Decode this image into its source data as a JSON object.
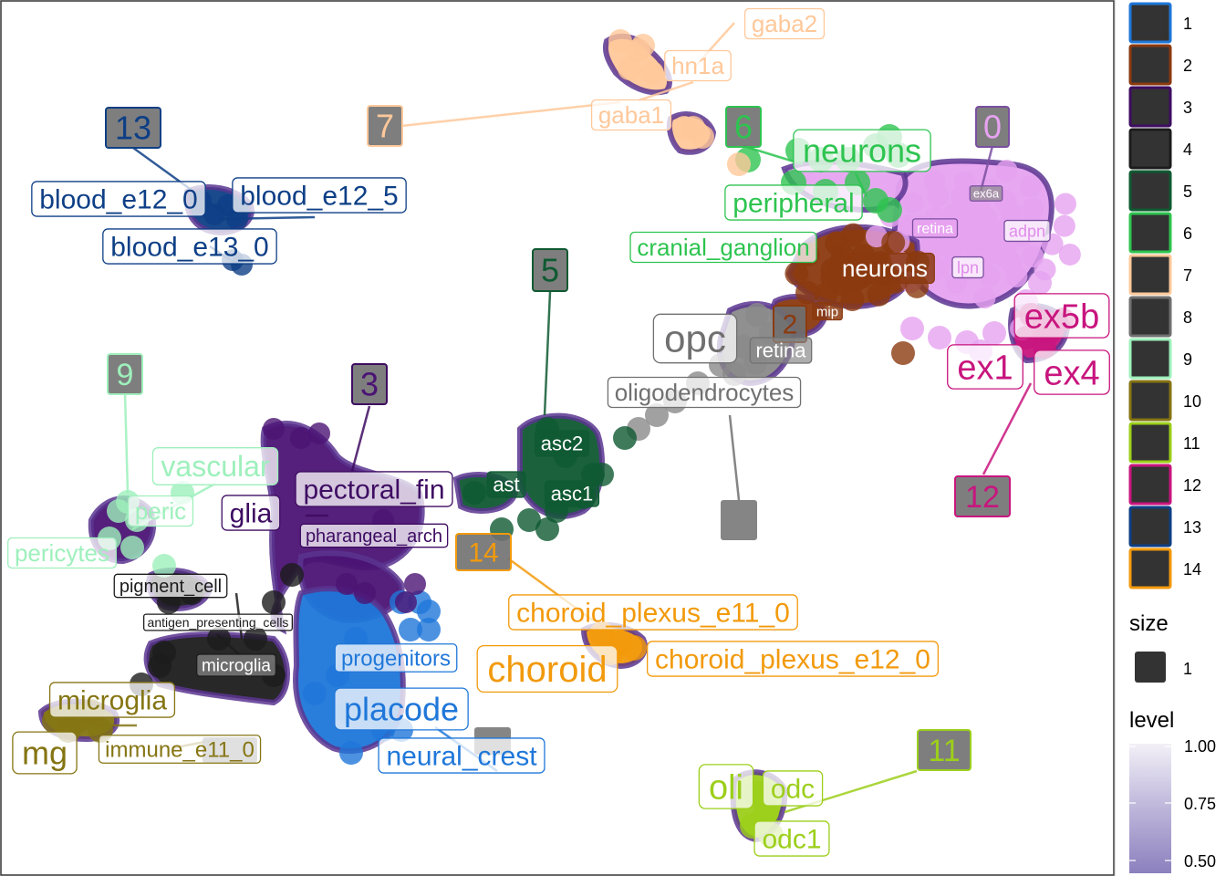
{
  "chart_data": {
    "type": "scatter",
    "title": "",
    "xlabel": "",
    "ylabel": "",
    "axes_visible": false,
    "legend_placement": "right",
    "cluster_colors": {
      "1": "#1F77D9",
      "2": "#8B3A0F",
      "3": "#3E0C62",
      "4": "#1C1C1C",
      "5": "#0F5A32",
      "6": "#2EC450",
      "7": "#FFC89A",
      "8": "#707070",
      "9": "#9EF0BC",
      "10": "#857513",
      "11": "#9CCF1A",
      "12": "#C8157E",
      "13": "#0E3F86",
      "14": "#F29A0C"
    },
    "clusters": [
      {
        "id": "0",
        "fill": "#E6A3F0",
        "color": "#7A4FA0",
        "number_label": "0",
        "labels": [
          "ex6a",
          "retina",
          "adpn",
          "lpn"
        ]
      },
      {
        "id": "1",
        "fill": "#1F77D9",
        "color": "#1F77D9",
        "number_label": "",
        "labels": [
          "progenitors",
          "placode",
          "neural_crest"
        ]
      },
      {
        "id": "2",
        "fill": "#8B3A0F",
        "color": "#8B3A0F",
        "number_label": "2",
        "labels": [
          "neurons",
          "mip"
        ]
      },
      {
        "id": "3",
        "fill": "#4B1474",
        "color": "#3E0C62",
        "number_label": "3",
        "labels": [
          "pectoral_fin",
          "glia",
          "pharangeal_arch"
        ]
      },
      {
        "id": "4",
        "fill": "#1C1C1C",
        "color": "#1C1C1C",
        "number_label": "",
        "labels": [
          "pigment_cell",
          "antigen_presenting_cells",
          "microglia"
        ]
      },
      {
        "id": "5",
        "fill": "#0F5A32",
        "color": "#0F5A32",
        "number_label": "5",
        "labels": [
          "asc2",
          "ast",
          "asc1"
        ]
      },
      {
        "id": "6",
        "fill": "#2EC450",
        "color": "#2EC450",
        "number_label": "6",
        "labels": [
          "neurons",
          "peripheral",
          "cranial_ganglion"
        ]
      },
      {
        "id": "7",
        "fill": "#FFC89A",
        "color": "#FFC89A",
        "number_label": "7",
        "labels": [
          "gaba2",
          "hn1a",
          "gaba1"
        ]
      },
      {
        "id": "8",
        "fill": "#8A8A8A",
        "color": "#707070",
        "number_label": "",
        "labels": [
          "opc",
          "retina",
          "oligodendrocytes"
        ]
      },
      {
        "id": "9",
        "fill": "#9EF0BC",
        "color": "#9EF0BC",
        "number_label": "9",
        "labels": [
          "vascular",
          "peric",
          "pericytes"
        ]
      },
      {
        "id": "10",
        "fill": "#857513",
        "color": "#857513",
        "number_label": "",
        "labels": [
          "microglia",
          "mg",
          "immune_e11_0"
        ]
      },
      {
        "id": "11",
        "fill": "#9CCF1A",
        "color": "#9CCF1A",
        "number_label": "11",
        "labels": [
          "oli",
          "odc",
          "odc1"
        ]
      },
      {
        "id": "12",
        "fill": "#C8157E",
        "color": "#C8157E",
        "number_label": "12",
        "labels": [
          "ex5b",
          "ex1",
          "ex4"
        ]
      },
      {
        "id": "13",
        "fill": "#0E3F86",
        "color": "#0E3F86",
        "number_label": "13",
        "labels": [
          "blood_e12_0",
          "blood_e12_5",
          "blood_e13_0"
        ]
      },
      {
        "id": "14",
        "fill": "#F29A0C",
        "color": "#F29A0C",
        "number_label": "14",
        "labels": [
          "choroid_plexus_e11_0",
          "choroid",
          "choroid_plexus_e12_0"
        ]
      }
    ]
  },
  "legend": {
    "group_items": [
      "1",
      "2",
      "3",
      "4",
      "5",
      "6",
      "7",
      "8",
      "9",
      "10",
      "11",
      "12",
      "13",
      "14"
    ],
    "size_title": "size",
    "size_items": [
      "1"
    ],
    "level_title": "level",
    "level_ticks": [
      "1.00",
      "0.75",
      "0.50"
    ],
    "level_range": [
      0.5,
      1.0
    ]
  }
}
